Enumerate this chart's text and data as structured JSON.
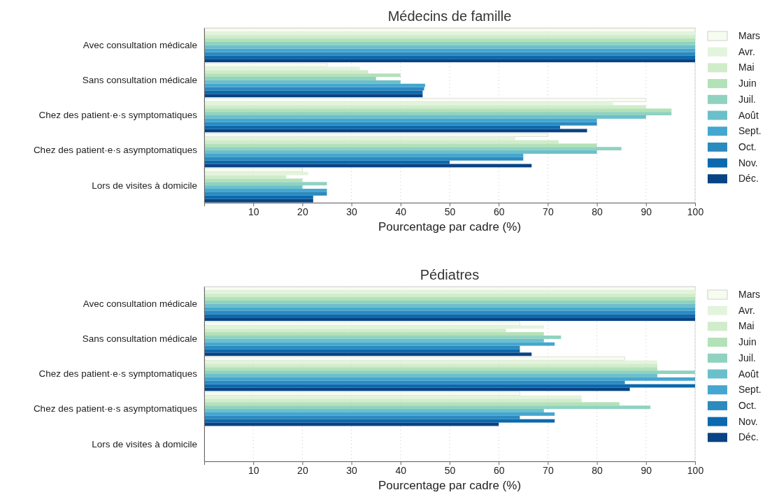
{
  "chart_data": [
    {
      "type": "bar",
      "orientation": "horizontal",
      "title": "Médecins de famille",
      "xlabel": "Pourcentage par cadre (%)",
      "xlim": [
        0,
        100
      ],
      "xticks": [
        10,
        20,
        30,
        40,
        50,
        60,
        70,
        80,
        90,
        100
      ],
      "grid": "x",
      "legend": "right",
      "categories": [
        "Avec consultation médicale",
        "Sans consultation médicale",
        "Chez des patient·e·s symptomatiques",
        "Chez des patient·e·s asymptomatiques",
        "Lors de visites à domicile"
      ],
      "series": [
        {
          "name": "Mars",
          "color": "#f7fcf0",
          "values": [
            100,
            25,
            90,
            70,
            20
          ]
        },
        {
          "name": "Avr.",
          "color": "#e3f4dd",
          "values": [
            100,
            31.7,
            83.3,
            63.4,
            21.2
          ]
        },
        {
          "name": "Mai",
          "color": "#d0ecca",
          "values": [
            100,
            33.4,
            90,
            72.2,
            16.7
          ]
        },
        {
          "name": "Juin",
          "color": "#b3e1b8",
          "values": [
            100,
            40,
            95.2,
            80,
            20
          ]
        },
        {
          "name": "Juil.",
          "color": "#8fd2c0",
          "values": [
            100,
            35,
            95.2,
            85,
            25
          ]
        },
        {
          "name": "Août",
          "color": "#6bbfcb",
          "values": [
            100,
            40,
            90,
            80,
            20
          ]
        },
        {
          "name": "Sept.",
          "color": "#45a6d0",
          "values": [
            100,
            45,
            80,
            65,
            25
          ]
        },
        {
          "name": "Oct.",
          "color": "#2b8abe",
          "values": [
            100,
            44.8,
            80,
            65,
            25
          ]
        },
        {
          "name": "Nov.",
          "color": "#0c69ad",
          "values": [
            100,
            44.5,
            72.5,
            50,
            22.2
          ]
        },
        {
          "name": "Déc.",
          "color": "#084384",
          "values": [
            100,
            44.5,
            78,
            66.7,
            22.2
          ]
        }
      ]
    },
    {
      "type": "bar",
      "orientation": "horizontal",
      "title": "Pédiatres",
      "xlabel": "Pourcentage par cadre (%)",
      "xlim": [
        0,
        100
      ],
      "xticks": [
        10,
        20,
        30,
        40,
        50,
        60,
        70,
        80,
        90,
        100
      ],
      "grid": "x",
      "legend": "right",
      "categories": [
        "Avec consultation médicale",
        "Sans consultation médicale",
        "Chez des patient·e·s symptomatiques",
        "Chez des patient·e·s asymptomatiques",
        "Lors de visites à domicile"
      ],
      "series": [
        {
          "name": "Mars",
          "color": "#f7fcf0",
          "values": [
            100,
            64.3,
            85.7,
            64.3,
            null
          ]
        },
        {
          "name": "Avr.",
          "color": "#e3f4dd",
          "values": [
            100,
            69.2,
            92.3,
            76.9,
            null
          ]
        },
        {
          "name": "Mai",
          "color": "#d0ecca",
          "values": [
            100,
            61.5,
            92.3,
            76.9,
            null
          ]
        },
        {
          "name": "Juin",
          "color": "#b3e1b8",
          "values": [
            100,
            69.2,
            92.3,
            84.6,
            null
          ]
        },
        {
          "name": "Juil.",
          "color": "#8fd2c0",
          "values": [
            100,
            72.7,
            100,
            90.9,
            null
          ]
        },
        {
          "name": "Août",
          "color": "#6bbfcb",
          "values": [
            100,
            69.2,
            92.3,
            69.2,
            null
          ]
        },
        {
          "name": "Sept.",
          "color": "#45a6d0",
          "values": [
            100,
            71.4,
            100,
            71.4,
            null
          ]
        },
        {
          "name": "Oct.",
          "color": "#2b8abe",
          "values": [
            100,
            64.3,
            85.7,
            64.3,
            null
          ]
        },
        {
          "name": "Nov.",
          "color": "#0c69ad",
          "values": [
            100,
            64.3,
            100,
            71.4,
            null
          ]
        },
        {
          "name": "Déc.",
          "color": "#084384",
          "values": [
            100,
            66.7,
            86.7,
            60,
            null
          ]
        }
      ]
    }
  ]
}
